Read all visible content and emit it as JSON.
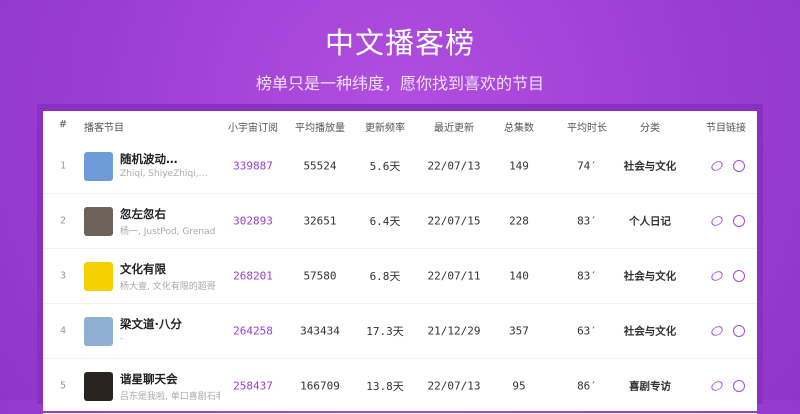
{
  "header": {
    "title": "中文播客榜",
    "subtitle": "榜单只是一种纬度，愿你找到喜欢的节目"
  },
  "table": {
    "columns": [
      "#",
      "播客节目",
      "小宇宙订阅",
      "平均播放量",
      "更新频率",
      "最近更新",
      "总集数",
      "平均时长",
      "分类",
      "节目链接"
    ],
    "rows": [
      {
        "rank": "1",
        "name": "随机波动…",
        "authors": "Zhiqi, ShiyeZhiqi,…",
        "subs": "339887",
        "plays": "55524",
        "freq": "5.6天",
        "last": "22/07/13",
        "eps": "149",
        "dur": "74′",
        "cat": "社会与文化",
        "cover": "#6f9bd8"
      },
      {
        "rank": "2",
        "name": "忽左忽右",
        "authors": "杨一, JustPod, Grenad",
        "subs": "302893",
        "plays": "32651",
        "freq": "6.4天",
        "last": "22/07/15",
        "eps": "228",
        "dur": "83′",
        "cat": "个人日记",
        "cover": "#6e625a",
        "cover_text": "忽左忽右"
      },
      {
        "rank": "3",
        "name": "文化有限",
        "authors": "杨大壹, 文化有限的超哥",
        "subs": "268201",
        "plays": "57580",
        "freq": "6.8天",
        "last": "22/07/11",
        "eps": "140",
        "dur": "83′",
        "cat": "社会与文化",
        "cover": "#f5d000",
        "cover_text": "文化有限"
      },
      {
        "rank": "4",
        "name": "梁文道·八分",
        "authors": "-",
        "subs": "264258",
        "plays": "343434",
        "freq": "17.3天",
        "last": "21/12/29",
        "eps": "357",
        "dur": "63′",
        "cat": "社会与文化",
        "cover": "#8fb0d0"
      },
      {
        "rank": "5",
        "name": "谐星聊天会",
        "authors": "吕东是我啦, 单口喜剧石老",
        "subs": "258437",
        "plays": "166709",
        "freq": "13.8天",
        "last": "22/07/13",
        "eps": "95",
        "dur": "86′",
        "cat": "喜剧专访",
        "cover": "#2a2420"
      }
    ]
  },
  "colors": {
    "accent": "#9b3fd0",
    "background": "#a444d8"
  }
}
